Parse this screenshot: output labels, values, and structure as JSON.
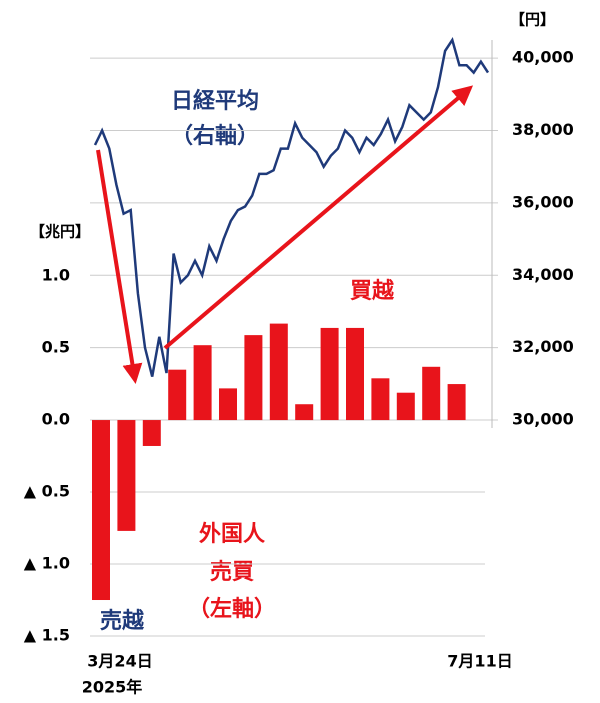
{
  "chart_data": {
    "type": "bar_line",
    "left_unit": "【兆円】",
    "right_unit": "【円】",
    "x_labels": [
      "3月24日",
      "7月11日"
    ],
    "x_sublabel": "2025年",
    "annotations": {
      "nikkei": "日経平均",
      "nikkei_axis": "（右軸）",
      "buy": "買越",
      "foreign": "外国人",
      "trade": "売買",
      "trade_axis": "（左軸）",
      "sell": "売越"
    },
    "ylim": [
      -1.5,
      2.64
    ],
    "yticks": [
      {
        "value": 1.0,
        "label": "1.0"
      },
      {
        "value": 0.5,
        "label": "0.5"
      },
      {
        "value": 0.0,
        "label": "0.0"
      },
      {
        "value": -0.5,
        "label": "▲ 0.5"
      },
      {
        "value": -1.0,
        "label": "▲ 1.0"
      },
      {
        "value": -1.5,
        "label": "▲ 1.5"
      }
    ],
    "y2lim": [
      30000,
      40500
    ],
    "y2ticks": [
      {
        "value": 40000,
        "label": "40,000"
      },
      {
        "value": 38000,
        "label": "38,000"
      },
      {
        "value": 36000,
        "label": "36,000"
      },
      {
        "value": 34000,
        "label": "34,000"
      },
      {
        "value": 32000,
        "label": "32,000"
      },
      {
        "value": 30000,
        "label": "30,000"
      }
    ],
    "grid": true,
    "bars": {
      "name": "外国人売買",
      "color": "#e8141b",
      "values": [
        -1.25,
        -0.77,
        -0.18,
        0.35,
        0.52,
        0.22,
        0.59,
        0.67,
        0.11,
        0.64,
        0.64,
        0.29,
        0.19,
        0.37,
        0.25
      ]
    },
    "line": {
      "name": "日経平均",
      "color": "#1f3a7a",
      "axis": "y2",
      "values": [
        37600,
        38000,
        37500,
        36500,
        35700,
        35800,
        33500,
        32000,
        31200,
        32300,
        31300,
        34600,
        33800,
        34000,
        34400,
        34000,
        34800,
        34400,
        35000,
        35500,
        35800,
        35900,
        36200,
        36800,
        36800,
        36900,
        37500,
        37500,
        38200,
        37800,
        37600,
        37400,
        37000,
        37300,
        37500,
        38000,
        37800,
        37400,
        37800,
        37600,
        37900,
        38300,
        37700,
        38100,
        38700,
        38500,
        38300,
        38500,
        39200,
        40200,
        40500,
        39800,
        39800,
        39600,
        39900,
        39600
      ]
    }
  }
}
